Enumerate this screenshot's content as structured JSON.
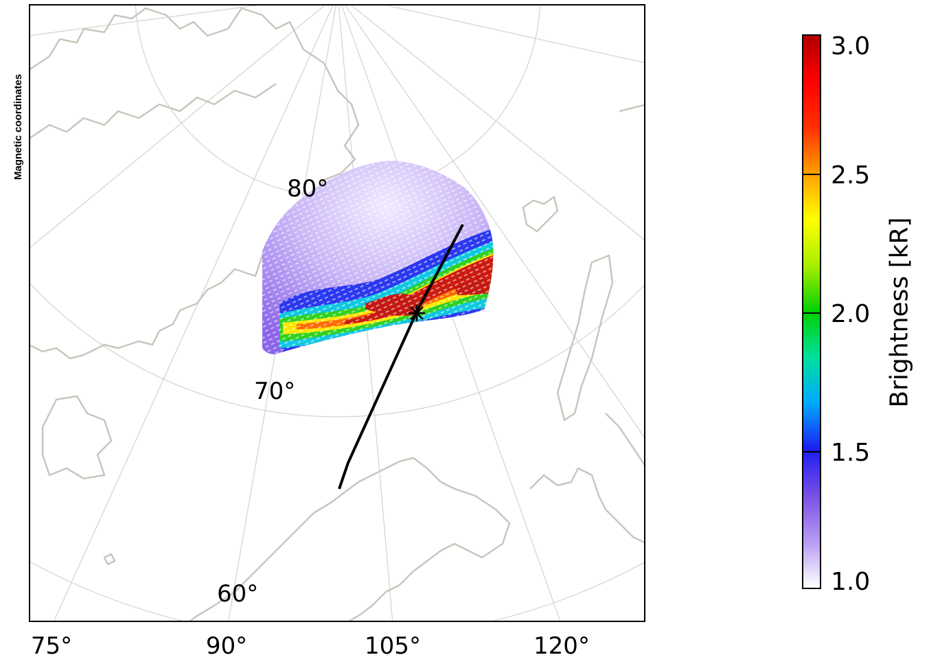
{
  "map": {
    "coordinate_system_label": "Magnetic coordinates",
    "latitude_labels": [
      "80°",
      "70°",
      "60°"
    ],
    "longitude_labels": [
      "75°",
      "90°",
      "105°",
      "120°"
    ],
    "marker": "asterisk",
    "track": "satellite footprint line",
    "coastline_color": "#c8c6bc",
    "grid_color": "#d2d2d2"
  },
  "colorbar": {
    "title": "Brightness [kR]",
    "min": 1.0,
    "max": 3.0,
    "ticks": [
      "1.0",
      "1.5",
      "2.0",
      "2.5",
      "3.0"
    ],
    "colormap": [
      "#ffffff",
      "#b79cf2",
      "#7a4fe6",
      "#1d1df0",
      "#00a8ff",
      "#00e0a0",
      "#00d000",
      "#a8ee00",
      "#ffff00",
      "#ffa000",
      "#ff3000",
      "#ff0000",
      "#b00000"
    ]
  }
}
